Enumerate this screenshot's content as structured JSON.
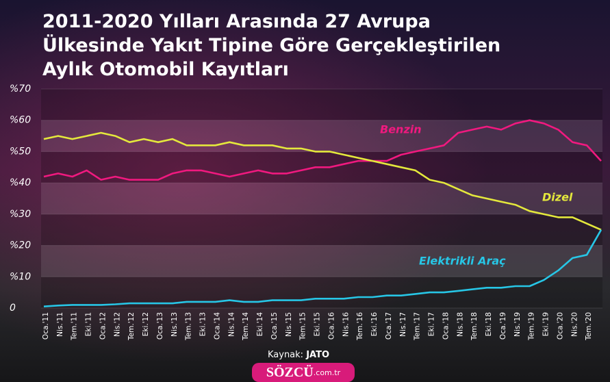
{
  "chart_data": {
    "type": "line",
    "title": [
      "2011-2020 Yılları Arasında 27 Avrupa",
      "Ülkesinde Yakıt Tipine Göre Gerçekleştirilen",
      "Aylık Otomobil Kayıtları"
    ],
    "categories": [
      "Oca.'11",
      "Nis.'11",
      "Tem.'11",
      "Eki.'11",
      "Oca.'12",
      "Nis.'12",
      "Tem.'12",
      "Eki.'12",
      "Oca.'13",
      "Nis.'13",
      "Tem.'13",
      "Eki.'13",
      "Oca.'14",
      "Nis.'14",
      "Tem.'14",
      "Eki.'14",
      "Oca.'15",
      "Nis.'15",
      "Tem.'15",
      "Eki.'15",
      "Oca.'16",
      "Nis.'16",
      "Tem.'16",
      "Eki.'16",
      "Oca.'17",
      "Nis.'17",
      "Tem.'17",
      "Eki.'17",
      "Oca.'18",
      "Nis.'18",
      "Tem.'18",
      "Eki.'18",
      "Oca.'19",
      "Nis.'19",
      "Tem.'19",
      "Eki.'19",
      "Oca.'20",
      "Nis.'20",
      "Tem.'20",
      null
    ],
    "series": [
      {
        "name": "Benzin",
        "color": "#f0197f",
        "values": [
          42,
          43,
          42,
          44,
          41,
          42,
          41,
          41,
          41,
          43,
          44,
          44,
          43,
          42,
          43,
          44,
          43,
          43,
          44,
          45,
          45,
          46,
          47,
          47,
          47,
          49,
          50,
          51,
          52,
          56,
          57,
          58,
          57,
          59,
          60,
          59,
          57,
          53,
          52,
          47
        ]
      },
      {
        "name": "Dizel",
        "color": "#e4e83c",
        "values": [
          54,
          55,
          54,
          55,
          56,
          55,
          53,
          54,
          53,
          54,
          52,
          52,
          52,
          53,
          52,
          52,
          52,
          51,
          51,
          50,
          50,
          49,
          48,
          47,
          46,
          45,
          44,
          41,
          40,
          38,
          36,
          35,
          34,
          33,
          31,
          30,
          29,
          29,
          27,
          25
        ]
      },
      {
        "name": "Elektrikli Araç",
        "color": "#27c6e6",
        "values": [
          0.5,
          0.8,
          1,
          1,
          1,
          1.2,
          1.5,
          1.5,
          1.5,
          1.5,
          2,
          2,
          2,
          2.5,
          2,
          2,
          2.5,
          2.5,
          2.5,
          3,
          3,
          3,
          3.5,
          3.5,
          4,
          4,
          4.5,
          5,
          5,
          5.5,
          6,
          6.5,
          6.5,
          7,
          7,
          9,
          12,
          16,
          17,
          25
        ]
      }
    ],
    "ylim": [
      0,
      70
    ],
    "yticks": [
      {
        "value": 0,
        "label": "0"
      },
      {
        "value": 10,
        "label": "%10"
      },
      {
        "value": 20,
        "label": "%20"
      },
      {
        "value": 30,
        "label": "%30"
      },
      {
        "value": 40,
        "label": "%40"
      },
      {
        "value": 50,
        "label": "%50"
      },
      {
        "value": 60,
        "label": "%60"
      },
      {
        "value": 70,
        "label": "%70"
      }
    ],
    "grid": true,
    "source_label": "Kaynak:",
    "source": "JATO",
    "logo": "SÖZCÜ",
    "logo_suffix": ".com.tr"
  }
}
